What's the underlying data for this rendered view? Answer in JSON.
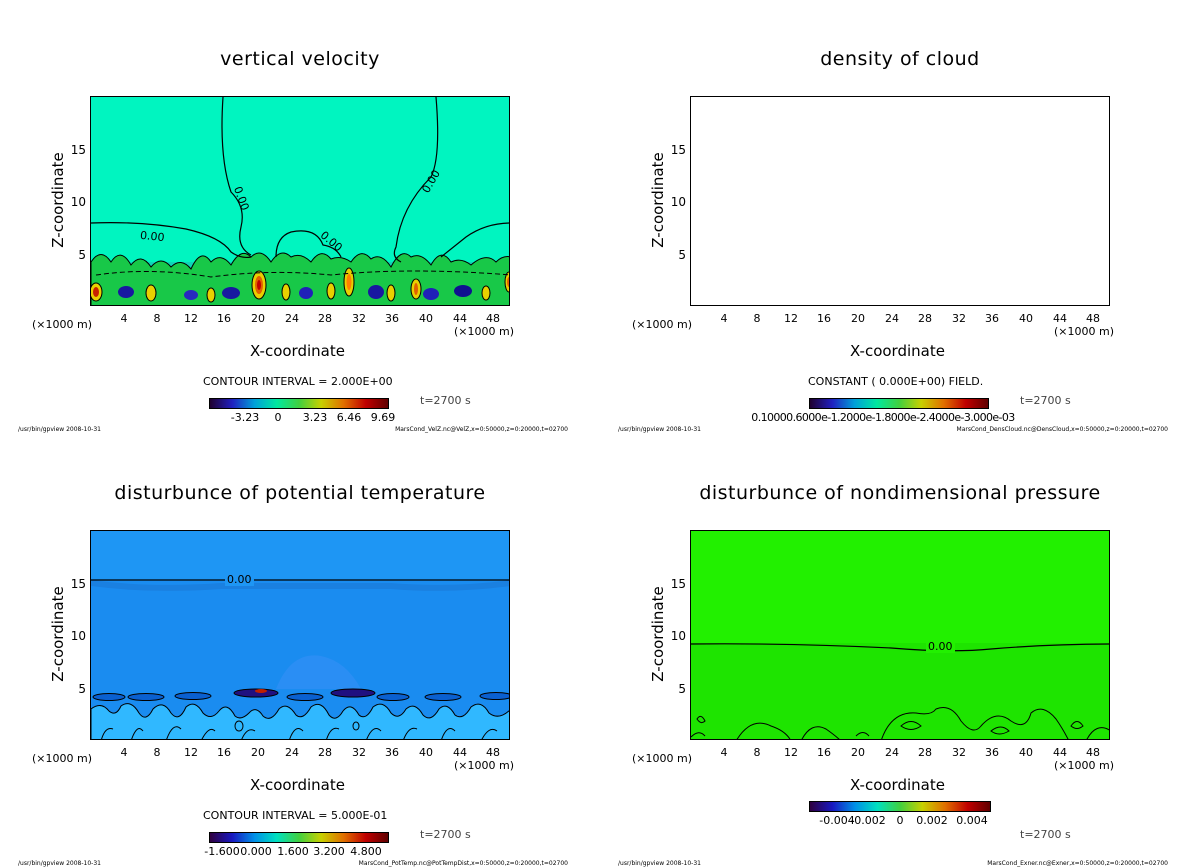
{
  "chart_data": [
    {
      "type": "heatmap",
      "title": "vertical velocity",
      "xlabel": "X-coordinate",
      "ylabel": "Z-coordinate",
      "x_unit": "(×1000 m)",
      "xlim": [
        0,
        50
      ],
      "ylim": [
        0,
        20
      ],
      "xticks": [
        "4",
        "8",
        "12",
        "16",
        "20",
        "24",
        "28",
        "32",
        "36",
        "40",
        "44",
        "48"
      ],
      "yticks": [
        "5",
        "10",
        "15"
      ],
      "contour_info": "CONTOUR INTERVAL = 2.000E+00",
      "contour_labels": [
        "0.00",
        "0.00",
        "0.00",
        "0.00"
      ],
      "colorbar_labels": [
        "-3.23",
        "0",
        "3.23",
        "6.46",
        "9.69"
      ],
      "time": "t=2700 s",
      "footer_left": "/usr/bin/gpview   2008-10-31",
      "footer_right": "MarsCond_VelZ.nc@VelZ,x=0:50000,z=0:20000,t=02700",
      "background": "#00f5c0"
    },
    {
      "type": "heatmap",
      "title": "density of cloud",
      "xlabel": "X-coordinate",
      "ylabel": "Z-coordinate",
      "x_unit": "(×1000 m)",
      "xlim": [
        0,
        50
      ],
      "ylim": [
        0,
        20
      ],
      "xticks": [
        "4",
        "8",
        "12",
        "16",
        "20",
        "24",
        "28",
        "32",
        "36",
        "40",
        "44",
        "48"
      ],
      "yticks": [
        "5",
        "10",
        "15"
      ],
      "contour_info": "CONSTANT ( 0.000E+00) FIELD.",
      "contour_labels": [],
      "colorbar_labels": [
        "0.10000.6000e-1.2000e-1.8000e-2.4000e-3.000e-03"
      ],
      "time": "t=2700 s",
      "footer_left": "/usr/bin/gpview   2008-10-31",
      "footer_right": "MarsCond_DensCloud.nc@DensCloud,x=0:50000,z=0:20000,t=02700",
      "background": "#ffffff"
    },
    {
      "type": "heatmap",
      "title": "disturbunce of potential temperature",
      "xlabel": "X-coordinate",
      "ylabel": "Z-coordinate",
      "x_unit": "(×1000 m)",
      "xlim": [
        0,
        50
      ],
      "ylim": [
        0,
        20
      ],
      "xticks": [
        "4",
        "8",
        "12",
        "16",
        "20",
        "24",
        "28",
        "32",
        "36",
        "40",
        "44",
        "48"
      ],
      "yticks": [
        "5",
        "10",
        "15"
      ],
      "contour_info": "CONTOUR INTERVAL = 5.000E-01",
      "contour_labels": [
        "0.00"
      ],
      "colorbar_labels": [
        "-1.600",
        "0.000",
        "1.600",
        "3.200",
        "4.800"
      ],
      "time": "t=2700 s",
      "footer_left": "/usr/bin/gpview   2008-10-31",
      "footer_right": "MarsCond_PotTemp.nc@PotTempDist,x=0:50000,z=0:20000,t=02700",
      "background": "#1a8cf0"
    },
    {
      "type": "heatmap",
      "title": "disturbunce of nondimensional pressure",
      "xlabel": "X-coordinate",
      "ylabel": "Z-coordinate",
      "x_unit": "(×1000 m)",
      "xlim": [
        0,
        50
      ],
      "ylim": [
        0,
        20
      ],
      "xticks": [
        "4",
        "8",
        "12",
        "16",
        "20",
        "24",
        "28",
        "32",
        "36",
        "40",
        "44",
        "48"
      ],
      "yticks": [
        "5",
        "10",
        "15"
      ],
      "contour_info": "",
      "contour_labels": [
        "0.00"
      ],
      "colorbar_labels": [
        "-0.004",
        "-0.002",
        "0",
        "0.002",
        "0.004"
      ],
      "time": "t=2700 s",
      "footer_left": "/usr/bin/gpview   2008-10-31",
      "footer_right": "MarsCond_Exner.nc@Exner,x=0:50000,z=0:20000,t=02700",
      "background": "#22f000"
    }
  ]
}
